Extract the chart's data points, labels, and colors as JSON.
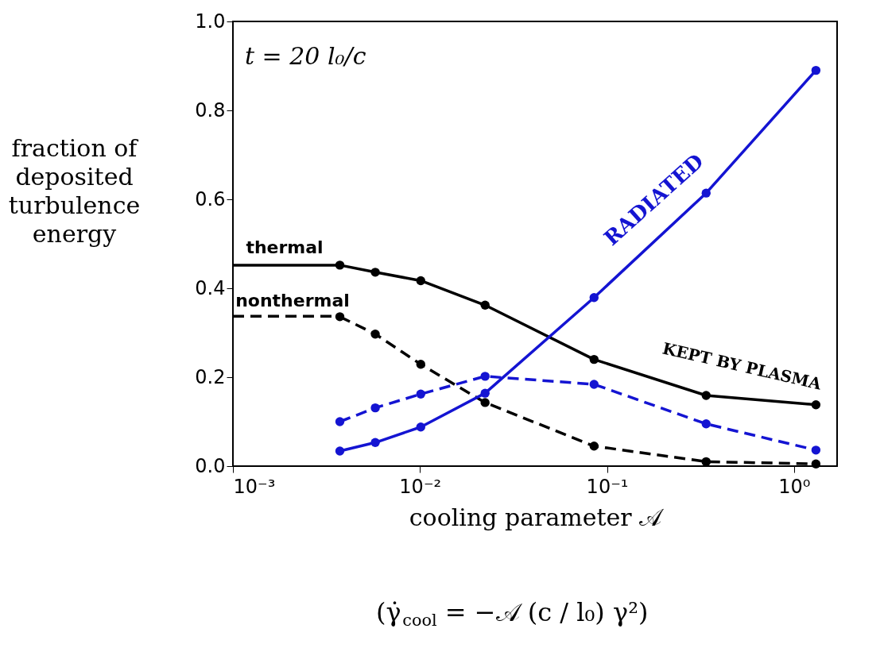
{
  "chart_data": {
    "type": "line",
    "ylabel": "fraction of\ndeposited\nturbulence\nenergy",
    "xlabel": "cooling parameter 𝒜",
    "log": "x",
    "xlim": [
      0.001,
      1.7
    ],
    "xticks": [
      {
        "value": 0.001,
        "label": "10⁻³"
      },
      {
        "value": 0.01,
        "label": "10⁻²"
      },
      {
        "value": 0.1,
        "label": "10⁻¹"
      },
      {
        "value": 1,
        "label": "10⁰"
      }
    ],
    "ylim": [
      0,
      1
    ],
    "yticks": [
      {
        "value": 0,
        "label": "0.0"
      },
      {
        "value": 0.2,
        "label": "0.2"
      },
      {
        "value": 0.4,
        "label": "0.4"
      },
      {
        "value": 0.6,
        "label": "0.6"
      },
      {
        "value": 0.8,
        "label": "0.8"
      },
      {
        "value": 1,
        "label": "1.0"
      }
    ],
    "grid": false,
    "marker": "circle",
    "series": [
      {
        "color": "#000000",
        "line_style": "solid",
        "x": [
          0.00373,
          0.00577,
          0.0101,
          0.0223,
          0.0853,
          0.339,
          1.31
        ],
        "values": [
          0.452,
          0.436,
          0.417,
          0.362,
          0.24,
          0.159,
          0.138
        ]
      },
      {
        "color": "#000000",
        "line_style": "dashed",
        "x": [
          0.00373,
          0.00577,
          0.0101,
          0.0223,
          0.0853,
          0.339,
          1.31
        ],
        "values": [
          0.336,
          0.297,
          0.229,
          0.143,
          0.045,
          0.01,
          0.005
        ]
      },
      {
        "color": "#1414d2",
        "line_style": "solid",
        "x": [
          0.00373,
          0.00577,
          0.0101,
          0.0223,
          0.0853,
          0.339,
          1.31
        ],
        "values": [
          0.034,
          0.053,
          0.088,
          0.164,
          0.379,
          0.614,
          0.89
        ]
      },
      {
        "color": "#1414d2",
        "line_style": "dashed",
        "x": [
          0.00373,
          0.00577,
          0.0101,
          0.0223,
          0.0853,
          0.339,
          1.31
        ],
        "values": [
          0.1,
          0.131,
          0.162,
          0.202,
          0.184,
          0.095,
          0.036
        ]
      },
      {
        "color": "#000000",
        "line_style": "solid",
        "marker": "none",
        "x": [
          0.001,
          0.00373
        ],
        "values": [
          0.452,
          0.452
        ]
      },
      {
        "color": "#000000",
        "line_style": "dashed",
        "marker": "none",
        "x": [
          0.001,
          0.00373
        ],
        "values": [
          0.337,
          0.337
        ]
      }
    ],
    "annotations": [
      "t = 20 l₀/c",
      "thermal",
      "nonthermal",
      "RADIATED",
      "KEPT BY PLASMA",
      "(γ̇$_{cool}$ = −𝒜 (c / l₀) γ²)"
    ]
  }
}
